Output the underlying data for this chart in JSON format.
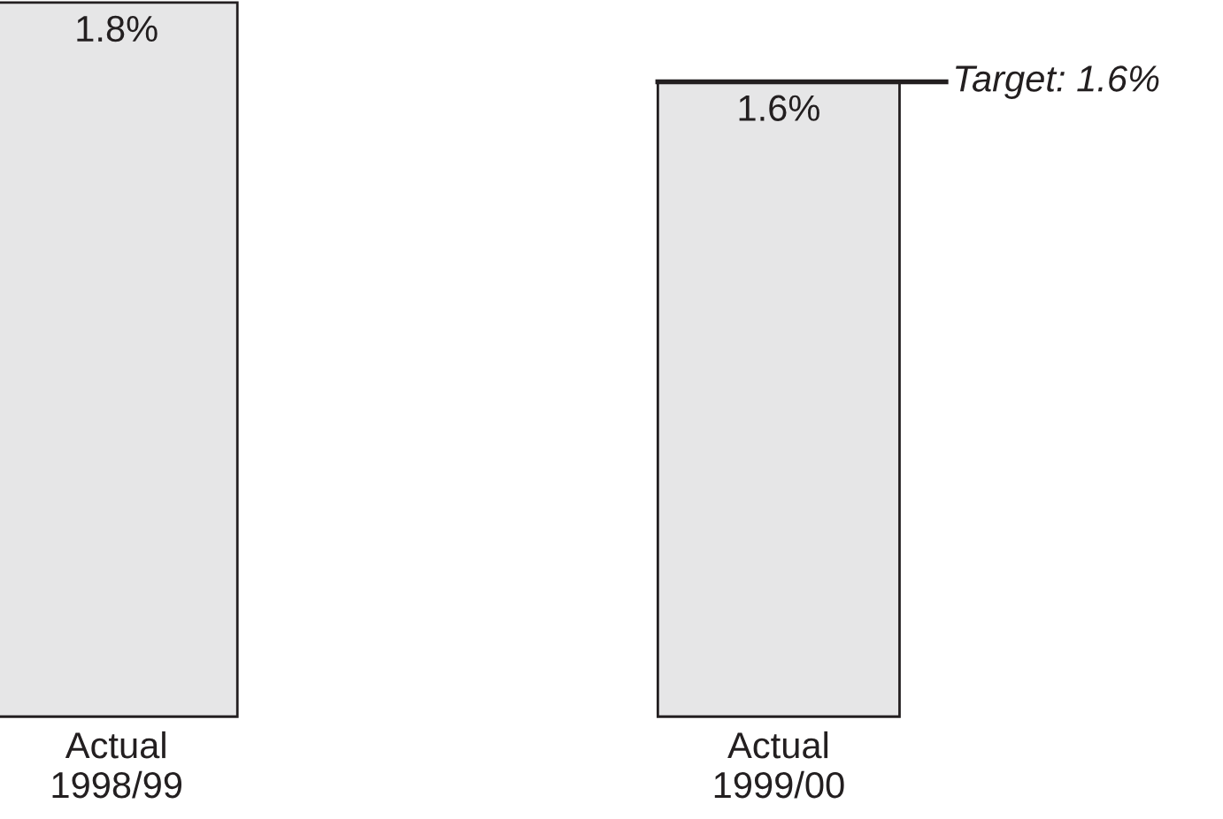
{
  "chart_data": {
    "type": "bar",
    "categories": [
      "Actual\n1998/99",
      "Actual\n1999/00"
    ],
    "values": [
      1.8,
      1.6
    ],
    "value_labels": [
      "1.8%",
      "1.6%"
    ],
    "color": "#e6e6e7",
    "ref_lines": [
      {
        "axis": "y",
        "value": 1.6,
        "label": "Target: 1.6%",
        "color": "#231f20"
      }
    ],
    "grid": false,
    "legend": false
  }
}
